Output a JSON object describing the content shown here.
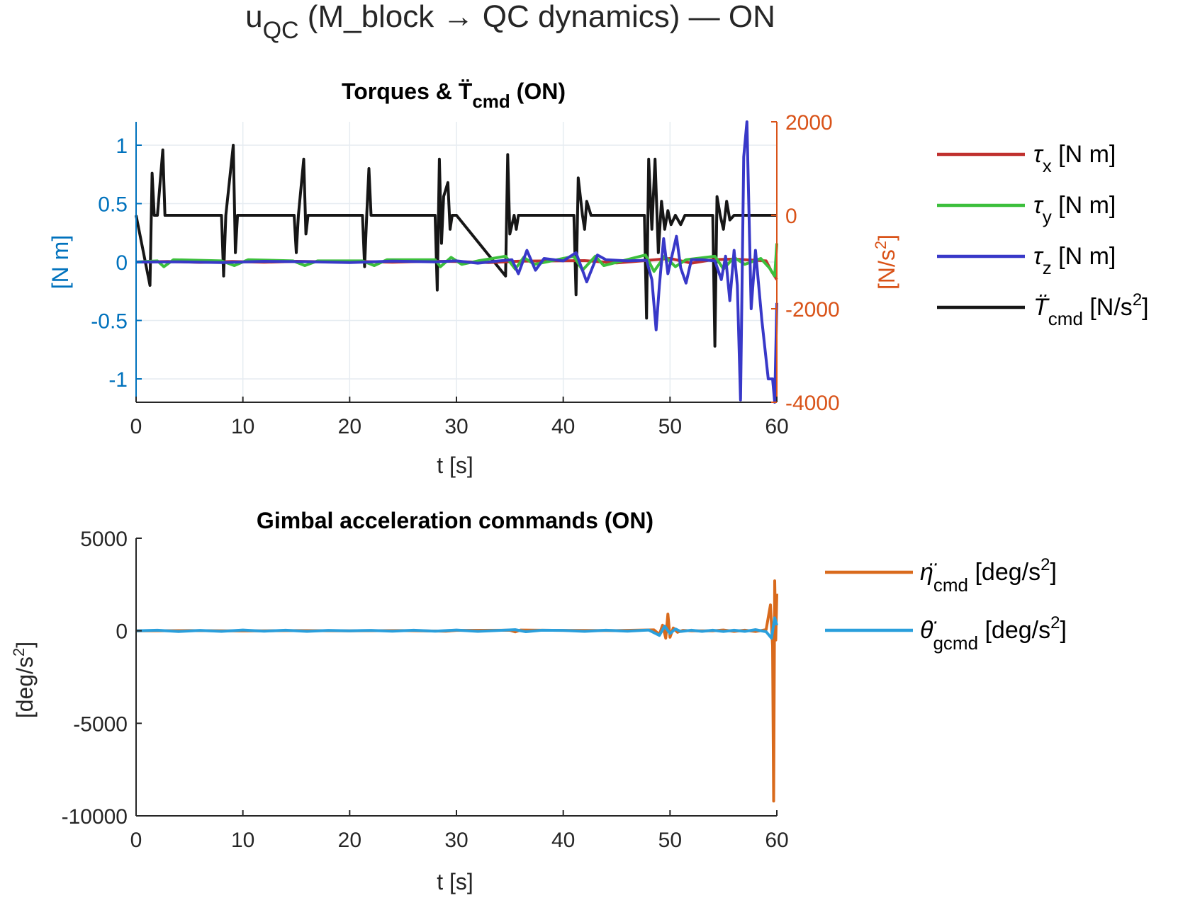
{
  "figure": {
    "title_main": "u",
    "title_sub": "QC",
    "title_rest": " (M_block → QC dynamics) — ON"
  },
  "colors": {
    "tau_x": "#c0302e",
    "tau_y": "#3cbf3c",
    "tau_z": "#3838c8",
    "T_ddot": "#161616",
    "eta_ddot": "#d96a1c",
    "theta_ddot": "#2a9fdc",
    "left_axis": "#0072bd",
    "right_axis": "#d95319",
    "axis": "#262626",
    "grid": "#e6ecf1"
  },
  "chart_data": [
    {
      "type": "line",
      "title_main": "Torques & ",
      "title_symbol": "T̈",
      "title_sub": "cmd",
      "title_tail": " (ON)",
      "xlabel": "t [s]",
      "ylabel_left": "[N m]",
      "ylabel_right_base": "[N/s",
      "ylabel_right_sup": "2",
      "ylabel_right_close": "]",
      "xlim": [
        0,
        60
      ],
      "ylim_left": [
        -1.2,
        1.2
      ],
      "ylim_right": [
        -4000,
        2000
      ],
      "xticks": [
        "0",
        "10",
        "20",
        "30",
        "40",
        "50",
        "60"
      ],
      "yticks_left": [
        "1",
        "0.5",
        "0",
        "-0.5",
        "-1"
      ],
      "yticks_left_values": [
        1,
        0.5,
        0,
        -0.5,
        -1
      ],
      "yticks_right": [
        "2000",
        "0",
        "-2000",
        "-4000"
      ],
      "yticks_right_values": [
        2000,
        0,
        -2000,
        -4000
      ],
      "grid": true,
      "legend_position": "outside-right",
      "legend": [
        {
          "sym": "τ",
          "sub": "x",
          "unit": " [N m]",
          "sup": "",
          "close": ""
        },
        {
          "sym": "τ",
          "sub": "y",
          "unit": " [N m]",
          "sup": "",
          "close": ""
        },
        {
          "sym": "τ",
          "sub": "z",
          "unit": " [N m]",
          "sup": "",
          "close": ""
        },
        {
          "sym": "T̈",
          "sub": "cmd",
          "unit": " [N/s",
          "sup": "2",
          "close": "]"
        }
      ],
      "series": [
        {
          "name": "tau_x",
          "axis": "left",
          "x": [
            0,
            3,
            6,
            9,
            12,
            15,
            18,
            21,
            24,
            27,
            30,
            33,
            36,
            39,
            42,
            45,
            48,
            50,
            52,
            54,
            56,
            57,
            58,
            59,
            59.5,
            60
          ],
          "y": [
            0,
            0.005,
            -0.003,
            0.004,
            -0.002,
            0.006,
            0.002,
            0.004,
            -0.002,
            0.006,
            0.005,
            -0.004,
            0.008,
            0.01,
            0.012,
            -0.008,
            0.015,
            0.03,
            -0.01,
            0.02,
            0.025,
            0.02,
            0.015,
            0.01,
            -0.08,
            -0.15
          ]
        },
        {
          "name": "tau_y",
          "axis": "left",
          "x": [
            0,
            2,
            2.6,
            3.5,
            8,
            9.2,
            10.5,
            14.7,
            15.8,
            17,
            21.2,
            22.3,
            23.5,
            28,
            28.5,
            29.5,
            30.5,
            32,
            34.6,
            35.5,
            36.3,
            37.3,
            41,
            41.8,
            43,
            43.8,
            47.7,
            48.5,
            49.5,
            50.5,
            51.5,
            54.2,
            55,
            56,
            57,
            58.5,
            59.3,
            59.8,
            60
          ],
          "y": [
            0,
            0.01,
            -0.04,
            0.02,
            0.01,
            -0.03,
            0.02,
            0.01,
            -0.03,
            0.01,
            0.01,
            -0.03,
            0.02,
            0.02,
            -0.04,
            0.04,
            -0.02,
            0.01,
            0.05,
            -0.06,
            0.04,
            -0.02,
            0.05,
            -0.07,
            0.05,
            -0.03,
            0.06,
            -0.08,
            0.05,
            -0.04,
            0.02,
            0.05,
            -0.06,
            0.04,
            -0.02,
            0.03,
            -0.05,
            -0.12,
            0.16
          ]
        },
        {
          "name": "tau_z",
          "axis": "left",
          "x": [
            0,
            4,
            8,
            12,
            16,
            20,
            24,
            28,
            30,
            32,
            34,
            35.2,
            35.8,
            36.6,
            37.4,
            38.2,
            40,
            41.2,
            42.2,
            43.2,
            44,
            46,
            47.8,
            48.3,
            48.7,
            49,
            49.4,
            49.8,
            50.6,
            51,
            51.5,
            52,
            53,
            54.2,
            54.8,
            55.2,
            55.6,
            56,
            56.3,
            56.6,
            56.9,
            57.2,
            57.6,
            58,
            58.6,
            59.2,
            59.6,
            59.8,
            60
          ],
          "y": [
            0,
            0.002,
            -0.004,
            0.006,
            0.003,
            -0.005,
            0.008,
            0.002,
            0.01,
            -0.01,
            0.01,
            0.02,
            -0.1,
            0.1,
            -0.07,
            0.03,
            0.01,
            0.08,
            -0.17,
            0.06,
            0.02,
            0.01,
            0.015,
            -0.15,
            -0.58,
            -0.2,
            0.2,
            -0.1,
            0.22,
            -0.05,
            -0.18,
            0.02,
            0.02,
            0.01,
            -0.15,
            0.05,
            -0.33,
            0.1,
            -0.2,
            -1.18,
            0.9,
            1.2,
            -0.4,
            0.1,
            -0.5,
            -1.0,
            -1.0,
            -1.2,
            -0.35
          ]
        },
        {
          "name": "T_ddot_cmd",
          "axis": "right",
          "x": [
            0,
            1.3,
            1.5,
            1.7,
            2.0,
            2.5,
            2.7,
            3.0,
            8.0,
            8.2,
            8.4,
            9.1,
            9.3,
            9.5,
            14.8,
            15.0,
            15.2,
            15.7,
            15.9,
            16.1,
            21.2,
            21.4,
            21.6,
            21.8,
            22.0,
            28.0,
            28.2,
            28.4,
            28.6,
            28.8,
            29.2,
            29.4,
            29.6,
            30.0,
            34.6,
            34.8,
            35.0,
            35.4,
            35.6,
            35.8,
            36.2,
            41.0,
            41.2,
            41.4,
            41.8,
            42.0,
            42.2,
            42.6,
            47.6,
            47.8,
            48.0,
            48.3,
            48.6,
            48.9,
            49.2,
            49.5,
            49.8,
            50.1,
            50.5,
            51.0,
            51.4,
            52.0,
            54.0,
            54.2,
            54.4,
            54.7,
            55.0,
            55.3,
            55.6,
            56.0,
            60
          ],
          "y": [
            0,
            -1500,
            900,
            0,
            0,
            1400,
            0,
            0,
            0,
            -1300,
            0,
            1500,
            -800,
            0,
            0,
            -800,
            0,
            1200,
            -400,
            0,
            0,
            -1100,
            0,
            1000,
            0,
            0,
            -1600,
            1200,
            -600,
            400,
            700,
            -300,
            0,
            0,
            -1300,
            1300,
            -400,
            0,
            -300,
            0,
            0,
            0,
            -1700,
            800,
            0,
            -300,
            300,
            0,
            0,
            -2200,
            1200,
            -300,
            1200,
            -800,
            300,
            -300,
            100,
            -200,
            0,
            -200,
            0,
            0,
            0,
            -2800,
            400,
            0,
            -300,
            300,
            -100,
            0,
            0
          ]
        }
      ]
    },
    {
      "type": "line",
      "title": "Gimbal acceleration commands (ON)",
      "xlabel": "t [s]",
      "ylabel_base": "[deg/s",
      "ylabel_sup": "2",
      "ylabel_close": "]",
      "xlim": [
        0,
        60
      ],
      "ylim": [
        -10000,
        5000
      ],
      "xticks": [
        "0",
        "10",
        "20",
        "30",
        "40",
        "50",
        "60"
      ],
      "yticks": [
        "5000",
        "0",
        "-5000",
        "-10000"
      ],
      "yticks_values": [
        5000,
        0,
        -5000,
        -10000
      ],
      "grid": false,
      "legend_position": "outside-right",
      "legend": [
        {
          "sym": "η̈",
          "sub": "cmd",
          "unit": " [deg/s",
          "sup": "2",
          "close": "]"
        },
        {
          "sym": "θ̈",
          "sub": "gcmd",
          "unit": " [deg/s",
          "sup": "2",
          "close": "]"
        }
      ],
      "series": [
        {
          "name": "eta_ddot_cmd",
          "x": [
            0,
            5,
            10,
            15,
            20,
            25,
            29,
            30,
            35,
            35.5,
            36,
            40,
            45,
            48.5,
            49,
            49.3,
            49.6,
            49.8,
            50.0,
            50.3,
            50.7,
            51.2,
            52,
            54,
            55,
            56,
            57,
            58,
            59,
            59.4,
            59.6,
            59.7,
            59.8,
            59.9,
            60.0
          ],
          "y": [
            0,
            10,
            -10,
            10,
            0,
            10,
            -20,
            20,
            30,
            -60,
            40,
            20,
            10,
            50,
            -200,
            300,
            -400,
            900,
            -350,
            150,
            -80,
            20,
            0,
            0,
            40,
            -30,
            30,
            -40,
            60,
            1400,
            -800,
            -9200,
            2700,
            -500,
            2000
          ]
        },
        {
          "name": "theta_ddot_gcmd",
          "x": [
            0,
            2,
            4,
            6,
            8,
            10,
            12,
            14,
            16,
            18,
            20,
            22,
            24,
            26,
            28,
            30,
            32,
            34,
            35.5,
            36.5,
            38,
            40,
            42,
            44,
            46,
            48,
            49,
            49.5,
            50,
            50.5,
            51,
            52,
            53,
            54,
            55,
            56,
            57,
            58,
            59,
            59.5,
            59.8,
            60
          ],
          "y": [
            0,
            30,
            -40,
            20,
            -30,
            40,
            -20,
            30,
            -30,
            20,
            0,
            20,
            -20,
            30,
            -20,
            40,
            -30,
            20,
            60,
            -50,
            30,
            20,
            -30,
            30,
            -20,
            40,
            -250,
            250,
            -150,
            100,
            -40,
            30,
            -30,
            30,
            -40,
            30,
            -30,
            60,
            -50,
            -400,
            700,
            300
          ]
        }
      ]
    }
  ]
}
